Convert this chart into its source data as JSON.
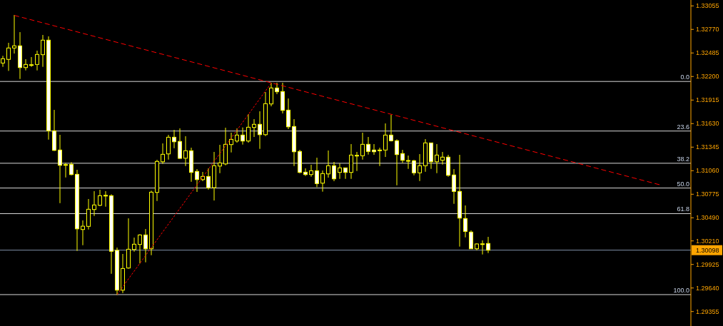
{
  "chart_data": {
    "type": "candlestick",
    "color": "#ffff00",
    "categories": [
      null,
      null,
      null,
      null,
      null,
      null,
      null,
      null,
      null,
      null,
      null,
      null,
      null,
      null,
      null,
      null,
      null,
      null,
      null,
      null,
      null,
      null,
      null,
      null,
      null,
      null,
      null,
      null,
      null,
      null,
      null,
      null,
      null,
      null,
      null,
      null,
      null,
      null,
      null,
      null,
      null,
      null,
      null,
      null,
      null,
      null,
      null,
      null,
      null,
      null,
      null,
      null,
      null,
      null,
      null,
      null,
      null,
      null,
      null,
      null,
      null,
      null,
      null,
      null,
      null,
      null,
      null,
      null,
      null,
      null,
      null,
      null,
      null,
      null,
      null,
      null,
      null,
      null,
      null,
      null,
      null,
      null,
      null,
      null,
      null,
      null,
      null,
      null,
      null,
      null,
      null,
      null,
      null,
      null,
      null,
      null,
      null,
      null,
      null,
      null,
      null,
      null,
      null,
      null,
      null,
      null,
      null,
      null,
      null,
      null,
      null,
      null,
      null,
      null,
      null,
      null,
      null,
      null,
      null,
      null,
      null
    ],
    "ohlc": [
      [
        1.32363,
        1.3245,
        1.32317,
        1.32415
      ],
      [
        1.32407,
        1.32608,
        1.32268,
        1.32545
      ],
      [
        1.32545,
        1.32945,
        1.32478,
        1.32571
      ],
      [
        1.32571,
        1.32737,
        1.3217,
        1.32308
      ],
      [
        1.32308,
        1.32409,
        1.32274,
        1.32346
      ],
      [
        1.32343,
        1.32435,
        1.32317,
        1.32343
      ],
      [
        1.32346,
        1.32513,
        1.32274,
        1.32467
      ],
      [
        1.32464,
        1.32703,
        1.32317,
        1.3264
      ],
      [
        1.3264,
        1.32686,
        1.31436,
        1.31543
      ],
      [
        1.31543,
        1.31796,
        1.31298,
        1.31306
      ],
      [
        1.3131,
        1.31494,
        1.30667,
        1.31125
      ],
      [
        1.31134,
        1.31154,
        1.30978,
        1.31134
      ],
      [
        1.31137,
        1.31163,
        1.31004,
        1.31013
      ],
      [
        1.31016,
        1.31071,
        1.30089,
        1.30356
      ],
      [
        1.30348,
        1.30458,
        1.30158,
        1.30388
      ],
      [
        1.30386,
        1.30717,
        1.30348,
        1.30593
      ],
      [
        1.3059,
        1.30812,
        1.30512,
        1.30645
      ],
      [
        1.30641,
        1.30829,
        1.3063,
        1.30757
      ],
      [
        1.30762,
        1.30812,
        1.30624,
        1.30762
      ],
      [
        1.30757,
        1.30774,
        1.29812,
        1.30084
      ],
      [
        1.30095,
        1.30129,
        1.29557,
        1.29614
      ],
      [
        1.29614,
        1.30052,
        1.29579,
        1.29876
      ],
      [
        1.29882,
        1.30483,
        1.29873,
        1.30109
      ],
      [
        1.30106,
        1.3025,
        1.3008,
        1.3017
      ],
      [
        1.30167,
        1.30291,
        1.29937,
        1.30282
      ],
      [
        1.30282,
        1.30354,
        1.29951,
        1.30115
      ],
      [
        1.30115,
        1.30818,
        1.30037,
        1.308
      ],
      [
        1.30797,
        1.31192,
        1.30693,
        1.31172
      ],
      [
        1.31168,
        1.3139,
        1.31142,
        1.31258
      ],
      [
        1.31263,
        1.31494,
        1.31194,
        1.31465
      ],
      [
        1.31465,
        1.31554,
        1.31332,
        1.3141
      ],
      [
        1.31414,
        1.31572,
        1.31203,
        1.31209
      ],
      [
        1.31211,
        1.31477,
        1.31116,
        1.31301
      ],
      [
        1.31301,
        1.31338,
        1.30926,
        1.31039
      ],
      [
        1.31051,
        1.31079,
        1.30803,
        1.30952
      ],
      [
        1.30952,
        1.31045,
        1.30933,
        1.3099
      ],
      [
        1.3099,
        1.31088,
        1.30831,
        1.30852
      ],
      [
        1.30855,
        1.31287,
        1.30699,
        1.3112
      ],
      [
        1.31116,
        1.31373,
        1.3103,
        1.31154
      ],
      [
        1.31142,
        1.3158,
        1.31125,
        1.31379
      ],
      [
        1.31376,
        1.3152,
        1.31281,
        1.31439
      ],
      [
        1.31419,
        1.31572,
        1.31399,
        1.31491
      ],
      [
        1.31491,
        1.31583,
        1.31376,
        1.31419
      ],
      [
        1.31419,
        1.31744,
        1.31399,
        1.31586
      ],
      [
        1.31583,
        1.31684,
        1.31468,
        1.31621
      ],
      [
        1.31621,
        1.31779,
        1.31324,
        1.31496
      ],
      [
        1.31496,
        1.32012,
        1.31479,
        1.31871
      ],
      [
        1.31868,
        1.32124,
        1.31839,
        1.32061
      ],
      [
        1.32061,
        1.32124,
        1.31986,
        1.32015
      ],
      [
        1.32018,
        1.32124,
        1.31753,
        1.3179
      ],
      [
        1.31793,
        1.31934,
        1.31563,
        1.31591
      ],
      [
        1.31595,
        1.31684,
        1.31116,
        1.31289
      ],
      [
        1.31293,
        1.31312,
        1.31028,
        1.31039
      ],
      [
        1.31042,
        1.31088,
        1.30996,
        1.31013
      ],
      [
        1.31013,
        1.31131,
        1.30987,
        1.31059
      ],
      [
        1.31059,
        1.31217,
        1.30861,
        1.30904
      ],
      [
        1.30909,
        1.31062,
        1.30806,
        1.31025
      ],
      [
        1.31021,
        1.31304,
        1.30976,
        1.3112
      ],
      [
        1.3112,
        1.31166,
        1.30933,
        1.30961
      ],
      [
        1.31039,
        1.31148,
        1.30961,
        1.31094
      ],
      [
        1.31094,
        1.31094,
        1.30961,
        1.31039
      ],
      [
        1.31039,
        1.31382,
        1.30961,
        1.31249
      ],
      [
        1.31246,
        1.31287,
        1.31056,
        1.31246
      ],
      [
        1.31241,
        1.3152,
        1.31194,
        1.31379
      ],
      [
        1.31379,
        1.31468,
        1.31255,
        1.31293
      ],
      [
        1.3131,
        1.31382,
        1.31252,
        1.31289
      ],
      [
        1.3131,
        1.31338,
        1.31116,
        1.3131
      ],
      [
        1.3131,
        1.31632,
        1.31226,
        1.31491
      ],
      [
        1.31491,
        1.31736,
        1.31414,
        1.31422
      ],
      [
        1.31422,
        1.31439,
        1.30883,
        1.31255
      ],
      [
        1.31267,
        1.31312,
        1.31154,
        1.31186
      ],
      [
        1.31183,
        1.31243,
        1.31082,
        1.31183
      ],
      [
        1.3118,
        1.31192,
        1.31004,
        1.31034
      ],
      [
        1.31034,
        1.31261,
        1.30935,
        1.3112
      ],
      [
        1.3112,
        1.31442,
        1.31047,
        1.31396
      ],
      [
        1.31396,
        1.31396,
        1.31082,
        1.31168
      ],
      [
        1.31168,
        1.31382,
        1.3103,
        1.31249
      ],
      [
        1.31186,
        1.31287,
        1.31134,
        1.31224
      ],
      [
        1.31224,
        1.31252,
        1.30987,
        1.31004
      ],
      [
        1.31008,
        1.31079,
        1.30659,
        1.30809
      ],
      [
        1.30809,
        1.31252,
        1.30141,
        1.30486
      ],
      [
        1.30481,
        1.30639,
        1.30253,
        1.30325
      ],
      [
        1.30317,
        1.30337,
        1.30115,
        1.30115
      ],
      [
        1.30115,
        1.30181,
        1.30097,
        1.30173
      ],
      [
        1.30175,
        1.30216,
        1.30046,
        1.30175
      ],
      [
        1.30179,
        1.30259,
        1.30063,
        1.30098
      ],
      null,
      null,
      null,
      null,
      null,
      null,
      null,
      null,
      null,
      null,
      null,
      null,
      null,
      null,
      null,
      null,
      null,
      null,
      null,
      null,
      null,
      null,
      null,
      null,
      null,
      null,
      null,
      null,
      null,
      null,
      null,
      null,
      null,
      null,
      null
    ],
    "series": [
      {
        "type": "line",
        "color": "#ff0000",
        "line_style": "dashed",
        "values": [
          null,
          null,
          1.3294,
          null,
          null,
          null,
          null,
          null,
          null,
          null,
          null,
          null,
          null,
          null,
          null,
          null,
          null,
          null,
          null,
          null,
          null,
          null,
          null,
          null,
          null,
          null,
          null,
          null,
          null,
          null,
          null,
          null,
          null,
          null,
          null,
          null,
          null,
          null,
          null,
          null,
          null,
          null,
          null,
          null,
          null,
          null,
          null,
          null,
          null,
          null,
          null,
          null,
          null,
          null,
          null,
          null,
          null,
          null,
          null,
          null,
          null,
          null,
          null,
          null,
          null,
          null,
          null,
          null,
          null,
          null,
          null,
          null,
          null,
          null,
          null,
          null,
          null,
          null,
          null,
          null,
          null,
          null,
          null,
          null,
          null,
          null,
          null,
          null,
          null,
          null,
          null,
          null,
          null,
          null,
          null,
          null,
          null,
          null,
          null,
          null,
          null,
          null,
          null,
          null,
          null,
          null,
          null,
          null,
          null,
          null,
          null,
          null,
          null,
          null,
          null,
          1.3089,
          null,
          null,
          null,
          null,
          null
        ]
      },
      {
        "type": "line",
        "color": "#ff0000",
        "line_style": "dotted",
        "values": [
          null,
          null,
          null,
          null,
          null,
          null,
          null,
          null,
          null,
          null,
          null,
          null,
          null,
          null,
          null,
          null,
          null,
          null,
          null,
          null,
          1.2956,
          null,
          null,
          null,
          null,
          null,
          null,
          null,
          null,
          null,
          null,
          null,
          null,
          null,
          null,
          null,
          null,
          null,
          null,
          null,
          null,
          null,
          null,
          null,
          null,
          null,
          null,
          1.3212,
          null,
          null,
          null,
          null,
          null,
          null,
          null,
          null,
          null,
          null,
          null,
          null,
          null,
          null,
          null,
          null,
          null,
          null,
          null,
          null,
          null,
          null,
          null,
          null,
          null,
          null,
          null,
          null,
          null,
          null,
          null,
          null,
          null,
          null,
          null,
          null,
          null,
          null,
          null,
          null,
          null,
          null,
          null,
          null,
          null,
          null,
          null,
          null,
          null,
          null,
          null,
          null,
          null,
          null,
          null,
          null,
          null,
          null,
          null,
          null,
          null,
          null,
          null,
          null,
          null,
          null,
          null,
          null,
          null,
          null,
          null,
          null,
          null
        ]
      }
    ],
    "ref_lines": [
      {
        "axis": "y",
        "value": 1.3214,
        "color": "#d8d8d8"
      },
      {
        "axis": "y",
        "value": 1.3154,
        "color": "#d8d8d8"
      },
      {
        "axis": "y",
        "value": 1.3115,
        "color": "#d8d8d8"
      },
      {
        "axis": "y",
        "value": 1.3085,
        "color": "#d8d8d8"
      },
      {
        "axis": "y",
        "value": 1.3054,
        "color": "#d8d8d8"
      },
      {
        "axis": "y",
        "value": 1.2956,
        "color": "#d8d8d8"
      },
      {
        "axis": "y",
        "value": 1.30098,
        "label": "1.30098",
        "color": "#8090a8"
      }
    ],
    "annotations": [
      {
        "text": "0.0",
        "y": 1.3214
      },
      {
        "text": "23.6",
        "y": 1.3154
      },
      {
        "text": "38.2",
        "y": 1.3115
      },
      {
        "text": "50.0",
        "y": 1.3085
      },
      {
        "text": "61.8",
        "y": 1.3054
      },
      {
        "text": "100.0",
        "y": 1.2956
      }
    ],
    "ylim": [
      1.2918,
      1.33126
    ],
    "yticks": [
      1.33055,
      {
        "value": 1.3277,
        "label": "1.32770"
      },
      1.32485,
      {
        "value": 1.322,
        "label": "1.32200"
      },
      1.31915,
      {
        "value": 1.3163,
        "label": "1.31630"
      },
      1.31345,
      {
        "value": 1.3106,
        "label": "1.31060"
      },
      1.30775,
      {
        "value": 1.3049,
        "label": "1.30490"
      },
      {
        "value": 1.3021,
        "label": "1.30210"
      },
      1.29925,
      {
        "value": 1.2964,
        "label": "1.29640"
      },
      1.29355
    ],
    "tick_labels": "y"
  }
}
